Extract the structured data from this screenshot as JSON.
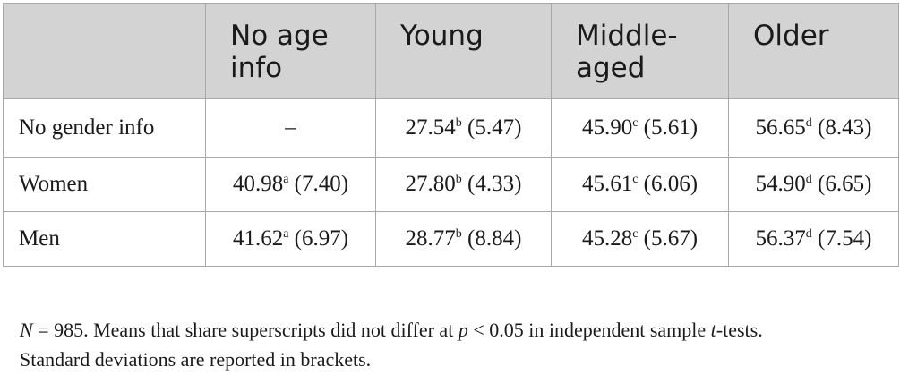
{
  "table": {
    "headers": [
      "",
      "No age info",
      "Young",
      "Middle-aged",
      "Older"
    ],
    "header_lines": [
      [],
      [
        "No age",
        "info"
      ],
      [
        "Young"
      ],
      [
        "Middle-",
        "aged"
      ],
      [
        "Older"
      ]
    ],
    "rows": [
      {
        "label": "No gender info",
        "cells": [
          {
            "mean": "–",
            "sup": "",
            "sd": ""
          },
          {
            "mean": "27.54",
            "sup": "b",
            "sd": "(5.47)"
          },
          {
            "mean": "45.90",
            "sup": "c",
            "sd": "(5.61)"
          },
          {
            "mean": "56.65",
            "sup": "d",
            "sd": "(8.43)"
          }
        ]
      },
      {
        "label": "Women",
        "cells": [
          {
            "mean": "40.98",
            "sup": "a",
            "sd": "(7.40)"
          },
          {
            "mean": "27.80",
            "sup": "b",
            "sd": "(4.33)"
          },
          {
            "mean": "45.61",
            "sup": "c",
            "sd": "(6.06)"
          },
          {
            "mean": "54.90",
            "sup": "d",
            "sd": "(6.65)"
          }
        ]
      },
      {
        "label": "Men",
        "cells": [
          {
            "mean": "41.62",
            "sup": "a",
            "sd": "(6.97)"
          },
          {
            "mean": "28.77",
            "sup": "b",
            "sd": "(8.84)"
          },
          {
            "mean": "45.28",
            "sup": "c",
            "sd": "(5.67)"
          },
          {
            "mean": "56.37",
            "sup": "d",
            "sd": "(7.54)"
          }
        ]
      }
    ]
  },
  "note": {
    "n_var": "N",
    "n_rest": " = 985. Means that share superscripts did not differ at ",
    "p_var": "p",
    "p_rest": " < 0.05 in independent sample ",
    "t_var": "t",
    "t_rest": "-tests.",
    "line2": "Standard deviations are reported in brackets."
  }
}
